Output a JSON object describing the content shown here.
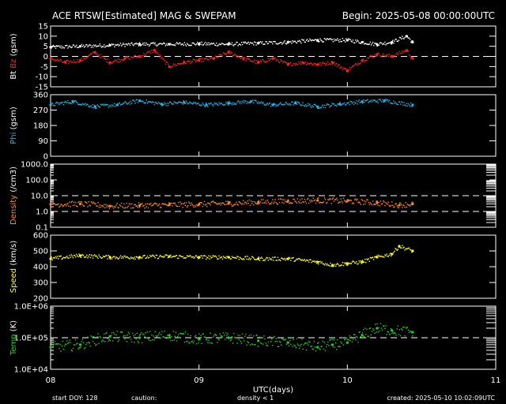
{
  "header": {
    "title": "ACE RTSW[Estimated] MAG & SWEPAM",
    "begin": "Begin: 2025-05-08 00:00:00UTC"
  },
  "footer": {
    "start_doy": "start DOY: 128",
    "caution_label": "caution:",
    "caution_note": "density < 1",
    "created": "created: 2025-05-10 10:02:09UTC"
  },
  "colors": {
    "background": "#000000",
    "axes": "#ffffff",
    "bt": "#ffffff",
    "bz": "#ff2020",
    "phi": "#20b8e8",
    "density": "#ff8c1a",
    "speed": "#ffff20",
    "temp": "#20d020",
    "caution": "#ff8c1a"
  },
  "chart_data": [
    {
      "type": "scatter",
      "id": "mag",
      "ylabel_parts": [
        {
          "text": "Bt",
          "color": "#ffffff"
        },
        {
          "text": " Bz",
          "color": "#ff2020"
        },
        {
          "text": " (gsm)",
          "color": "#ffffff"
        }
      ],
      "ylim": [
        -15,
        15
      ],
      "yticks": [
        15,
        10,
        5,
        0,
        -5,
        -10,
        -15
      ],
      "ytick_labels": [
        "15",
        "10",
        "5",
        "0",
        "-5",
        "-10",
        "-15"
      ],
      "hlines": [
        0
      ],
      "series": [
        {
          "name": "Bt",
          "color": "#ffffff",
          "x": [
            0.0,
            0.2,
            0.4,
            0.6,
            0.8,
            1.0,
            1.2,
            1.4,
            1.6,
            1.8,
            2.0,
            2.1,
            2.2,
            2.3,
            2.4,
            2.44
          ],
          "y": [
            4.5,
            5,
            5.5,
            6,
            6,
            6.2,
            6,
            6.5,
            7,
            8,
            8,
            7,
            6,
            7,
            10,
            7
          ]
        },
        {
          "name": "Bz",
          "color": "#ff2020",
          "x": [
            0.0,
            0.1,
            0.2,
            0.3,
            0.4,
            0.5,
            0.6,
            0.7,
            0.8,
            0.9,
            1.0,
            1.1,
            1.2,
            1.3,
            1.4,
            1.5,
            1.6,
            1.7,
            1.8,
            1.9,
            2.0,
            2.1,
            2.2,
            2.3,
            2.4,
            2.44
          ],
          "y": [
            -1,
            -3,
            -2,
            2,
            -3,
            -1,
            0,
            3,
            -5,
            -3,
            -2,
            -1,
            2,
            -1,
            -3,
            -1,
            -4,
            -3,
            -4,
            -3,
            -7,
            -2,
            1,
            0,
            3,
            -1
          ]
        }
      ]
    },
    {
      "type": "scatter",
      "id": "phi",
      "ylabel_parts": [
        {
          "text": "Phi",
          "color": "#20b8e8"
        },
        {
          "text": " (gsm)",
          "color": "#ffffff"
        }
      ],
      "ylim": [
        0,
        360
      ],
      "yticks": [
        360,
        270,
        180,
        90,
        0
      ],
      "ytick_labels": [
        "360",
        "270",
        "180",
        "90",
        "0"
      ],
      "hlines": [],
      "series": [
        {
          "name": "Phi",
          "color": "#20b8e8",
          "x": [
            0.0,
            0.15,
            0.3,
            0.45,
            0.6,
            0.75,
            0.9,
            1.05,
            1.2,
            1.35,
            1.5,
            1.65,
            1.8,
            1.95,
            2.1,
            2.25,
            2.44
          ],
          "y": [
            300,
            320,
            290,
            300,
            325,
            305,
            315,
            300,
            310,
            320,
            300,
            310,
            290,
            305,
            320,
            325,
            300
          ]
        }
      ]
    },
    {
      "type": "scatter",
      "id": "density",
      "ylabel_parts": [
        {
          "text": "Density",
          "color": "#ff8c1a"
        },
        {
          "text": " (/cm3)",
          "color": "#ffffff"
        }
      ],
      "scale": "log",
      "ylim": [
        0.1,
        1000
      ],
      "yticks": [
        1000,
        100,
        10,
        1,
        0.1
      ],
      "ytick_labels": [
        "1000.0",
        "100.0",
        "10.0",
        "1.0",
        "0.1"
      ],
      "hlines": [
        1,
        10
      ],
      "series": [
        {
          "name": "Density",
          "color": "#ff8c1a",
          "x": [
            0.0,
            0.2,
            0.4,
            0.6,
            0.8,
            1.0,
            1.2,
            1.4,
            1.6,
            1.8,
            2.0,
            2.2,
            2.35,
            2.44
          ],
          "y": [
            2.8,
            3,
            2.2,
            2.4,
            2.6,
            2.8,
            3.2,
            3.8,
            4.5,
            5,
            4.5,
            3.5,
            2.5,
            3
          ]
        }
      ]
    },
    {
      "type": "scatter",
      "id": "speed",
      "ylabel_parts": [
        {
          "text": "Speed",
          "color": "#ffff20"
        },
        {
          "text": " (km/s)",
          "color": "#ffffff"
        }
      ],
      "ylim": [
        200,
        600
      ],
      "yticks": [
        600,
        500,
        400,
        300,
        200
      ],
      "ytick_labels": [
        "600",
        "500",
        "400",
        "300",
        "200"
      ],
      "hlines": [],
      "series": [
        {
          "name": "Speed",
          "color": "#ffff20",
          "x": [
            0.0,
            0.2,
            0.4,
            0.6,
            0.8,
            1.0,
            1.2,
            1.4,
            1.6,
            1.8,
            1.9,
            2.0,
            2.1,
            2.2,
            2.3,
            2.35,
            2.44
          ],
          "y": [
            450,
            470,
            460,
            460,
            465,
            460,
            460,
            450,
            450,
            430,
            410,
            420,
            430,
            460,
            480,
            530,
            500
          ]
        }
      ]
    },
    {
      "type": "scatter",
      "id": "temp",
      "ylabel_parts": [
        {
          "text": "Temp",
          "color": "#20d020"
        },
        {
          "text": " (K)",
          "color": "#ffffff"
        }
      ],
      "scale": "log",
      "ylim": [
        10000,
        1000000
      ],
      "yticks": [
        1000000,
        100000,
        10000
      ],
      "ytick_labels": [
        "1.0E+06",
        "1.0E+05",
        "1.0E+04"
      ],
      "hlines": [
        100000
      ],
      "series": [
        {
          "name": "Temp",
          "color": "#20d020",
          "x": [
            0.0,
            0.2,
            0.4,
            0.6,
            0.8,
            1.0,
            1.2,
            1.4,
            1.6,
            1.8,
            1.9,
            2.0,
            2.1,
            2.2,
            2.3,
            2.44
          ],
          "y": [
            50000,
            60000,
            110000,
            100000,
            120000,
            90000,
            100000,
            80000,
            70000,
            50000,
            60000,
            70000,
            120000,
            200000,
            170000,
            150000
          ]
        }
      ]
    }
  ],
  "x_axis": {
    "xlim": [
      0,
      3
    ],
    "ticks": [
      0,
      1,
      2,
      3
    ],
    "tick_labels": [
      "08",
      "09",
      "10",
      "11"
    ],
    "label": "UTC(days)"
  }
}
